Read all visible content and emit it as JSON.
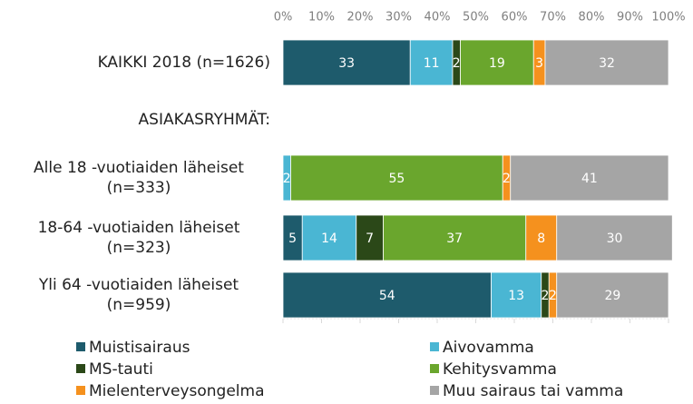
{
  "chart_data": {
    "type": "stacked_bar_horizontal",
    "categories": [
      "KAIKKI 2018 (n=1626)",
      "ASIAKASRYHMÄT:",
      "Alle 18 -vuotiaiden läheiset (n=333)",
      "18-64 -vuotiaiden läheiset (n=323)",
      "Yli 64 -vuotiaiden läheiset (n=959)"
    ],
    "series": [
      {
        "name": "Muistisairaus",
        "color": "#1e5b6c",
        "values": [
          33,
          null,
          0,
          5,
          54
        ]
      },
      {
        "name": "Aivovamma",
        "color": "#4ab6d3",
        "values": [
          11,
          null,
          2,
          14,
          13
        ]
      },
      {
        "name": "MS-tauti",
        "color": "#2b4818",
        "values": [
          2,
          null,
          0,
          7,
          2
        ]
      },
      {
        "name": "Kehitysvamma",
        "color": "#6aa62d",
        "values": [
          19,
          null,
          55,
          37,
          0
        ]
      },
      {
        "name": "Mielenterveysongelma",
        "color": "#f5911e",
        "values": [
          3,
          null,
          2,
          8,
          2
        ]
      },
      {
        "name": "Muu sairaus tai vamma",
        "color": "#a5a5a5",
        "values": [
          32,
          null,
          41,
          30,
          29
        ]
      }
    ],
    "xlim": [
      0,
      100
    ],
    "xticks": [
      {
        "value": 0,
        "label": "0%"
      },
      {
        "value": 10,
        "label": "10%"
      },
      {
        "value": 20,
        "label": "20%"
      },
      {
        "value": 30,
        "label": "30%"
      },
      {
        "value": 40,
        "label": "40%"
      },
      {
        "value": 50,
        "label": "50%"
      },
      {
        "value": 60,
        "label": "60%"
      },
      {
        "value": 70,
        "label": "70%"
      },
      {
        "value": 80,
        "label": "80%"
      },
      {
        "value": 90,
        "label": "90%"
      },
      {
        "value": 100,
        "label": "100%"
      }
    ],
    "legend": "bottom"
  }
}
